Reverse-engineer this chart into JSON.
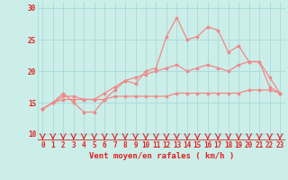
{
  "x": [
    0,
    1,
    2,
    3,
    4,
    5,
    6,
    7,
    8,
    9,
    10,
    11,
    12,
    13,
    14,
    15,
    16,
    17,
    18,
    19,
    20,
    21,
    22,
    23
  ],
  "line1": [
    14,
    15,
    16.5,
    15,
    13.5,
    13.5,
    15.5,
    17,
    18.5,
    18,
    20,
    20.5,
    25.5,
    28.5,
    25,
    25.5,
    27,
    26.5,
    23,
    24,
    21.5,
    21.5,
    17.5,
    16.5
  ],
  "line2": [
    14,
    15,
    16,
    16,
    15.5,
    15.5,
    16.5,
    17.5,
    18.5,
    19,
    19.5,
    20,
    20.5,
    21,
    20,
    20.5,
    21,
    20.5,
    20,
    21,
    21.5,
    21.5,
    19,
    16.5
  ],
  "line3": [
    14,
    15,
    15.5,
    15.5,
    15.5,
    15.5,
    15.5,
    16,
    16,
    16,
    16,
    16,
    16,
    16.5,
    16.5,
    16.5,
    16.5,
    16.5,
    16.5,
    16.5,
    17,
    17,
    17,
    16.5
  ],
  "line_color": "#f08888",
  "bg_color": "#cceee8",
  "grid_color": "#aadddd",
  "axis_color": "#dd2222",
  "xlabel": "Vent moyen/en rafales ( km/h )",
  "ylim": [
    9,
    31
  ],
  "yticks": [
    10,
    15,
    20,
    25,
    30
  ],
  "xlim": [
    -0.5,
    23.5
  ],
  "xlabel_fontsize": 6.5,
  "tick_fontsize": 5.5
}
